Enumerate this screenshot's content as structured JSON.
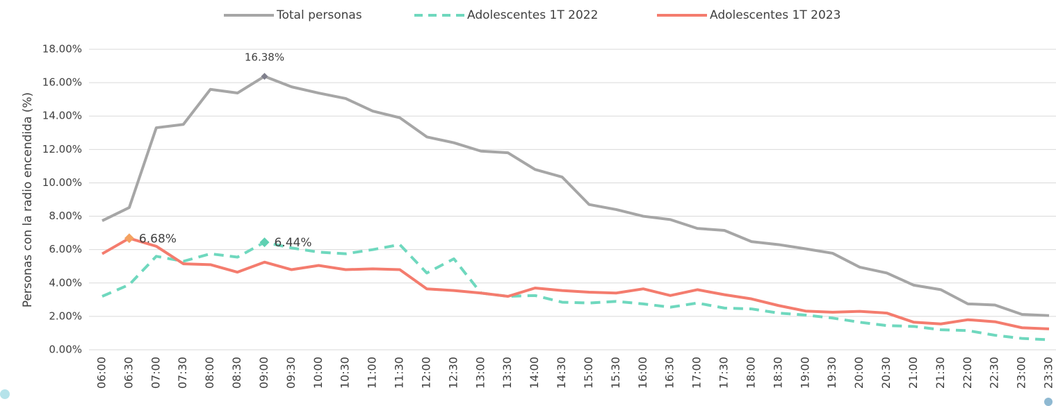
{
  "chart_data": {
    "type": "line",
    "y_label": "Personas con la radio encendida (%)",
    "categories": [
      "06:00",
      "06:30",
      "07:00",
      "07:30",
      "08:00",
      "08:30",
      "09:00",
      "09:30",
      "10:00",
      "10:30",
      "11:00",
      "11:30",
      "12:00",
      "12:30",
      "13:00",
      "13:30",
      "14:00",
      "14:30",
      "15:00",
      "15:30",
      "16:00",
      "16:30",
      "17:00",
      "17:30",
      "18:00",
      "18:30",
      "19:00",
      "19:30",
      "20:00",
      "20:30",
      "21:00",
      "21:30",
      "22:00",
      "22:30",
      "23:00",
      "23:30"
    ],
    "series": [
      {
        "name": "Total personas",
        "color": "#a6a6a6",
        "line_style": "solid",
        "marker_color": "#7f7f8c",
        "values": [
          7.73,
          8.52,
          13.3,
          13.5,
          15.6,
          15.38,
          16.38,
          15.75,
          15.38,
          15.05,
          14.3,
          13.9,
          12.75,
          12.4,
          11.9,
          11.8,
          10.8,
          10.35,
          8.7,
          8.4,
          8.0,
          7.8,
          7.27,
          7.15,
          6.48,
          6.3,
          6.05,
          5.78,
          4.95,
          4.6,
          3.87,
          3.6,
          2.75,
          2.68,
          2.12,
          2.05
        ],
        "value_labels": [
          null,
          null,
          null,
          null,
          null,
          null,
          "16.38%",
          null,
          null,
          null,
          null,
          null,
          null,
          null,
          null,
          null,
          null,
          null,
          null,
          null,
          null,
          null,
          null,
          null,
          null,
          null,
          null,
          null,
          null,
          null,
          null,
          null,
          null,
          null,
          null,
          null
        ]
      },
      {
        "name": "Adolescentes 1T 2022",
        "color": "#6fd8be",
        "line_style": "dashed",
        "marker_color": "#5fd0b2",
        "values": [
          3.2,
          3.9,
          5.6,
          5.3,
          5.75,
          5.55,
          6.44,
          6.1,
          5.85,
          5.75,
          6.0,
          6.3,
          4.6,
          5.45,
          3.4,
          3.2,
          3.25,
          2.85,
          2.8,
          2.9,
          2.75,
          2.55,
          2.8,
          2.5,
          2.45,
          2.2,
          2.08,
          1.9,
          1.65,
          1.45,
          1.4,
          1.2,
          1.15,
          0.87,
          0.68,
          0.6
        ],
        "value_labels": [
          null,
          null,
          null,
          null,
          null,
          null,
          "6.44%",
          null,
          null,
          null,
          null,
          null,
          null,
          null,
          null,
          null,
          null,
          null,
          null,
          null,
          null,
          null,
          null,
          null,
          null,
          null,
          null,
          null,
          null,
          null,
          null,
          null,
          null,
          null,
          null,
          null
        ]
      },
      {
        "name": "Adolescentes 1T 2023",
        "color": "#f47c6e",
        "line_style": "solid",
        "marker_color": "#f4a261",
        "values": [
          5.75,
          6.68,
          6.2,
          5.15,
          5.1,
          4.65,
          5.25,
          4.8,
          5.05,
          4.8,
          4.85,
          4.8,
          3.65,
          3.55,
          3.4,
          3.2,
          3.7,
          3.55,
          3.45,
          3.4,
          3.65,
          3.25,
          3.6,
          3.3,
          3.05,
          2.65,
          2.32,
          2.25,
          2.3,
          2.2,
          1.65,
          1.55,
          1.8,
          1.68,
          1.32,
          1.25
        ],
        "value_labels": [
          null,
          "6.68%",
          null,
          null,
          null,
          null,
          null,
          null,
          null,
          null,
          null,
          null,
          null,
          null,
          null,
          null,
          null,
          null,
          null,
          null,
          null,
          null,
          null,
          null,
          null,
          null,
          null,
          null,
          null,
          null,
          null,
          null,
          null,
          null,
          null,
          null
        ]
      }
    ],
    "ylim": [
      0,
      18
    ],
    "yticks": [
      {
        "value": 0,
        "label": "0.00%"
      },
      {
        "value": 2,
        "label": "2.00%"
      },
      {
        "value": 4,
        "label": "4.00%"
      },
      {
        "value": 6,
        "label": "6.00%"
      },
      {
        "value": 8,
        "label": "8.00%"
      },
      {
        "value": 10,
        "label": "10.00%"
      },
      {
        "value": 12,
        "label": "12.00%"
      },
      {
        "value": 14,
        "label": "14.00%"
      },
      {
        "value": 16,
        "label": "16.00%"
      },
      {
        "value": 18,
        "label": "18.00%"
      }
    ],
    "grid": true,
    "legend": "top"
  }
}
